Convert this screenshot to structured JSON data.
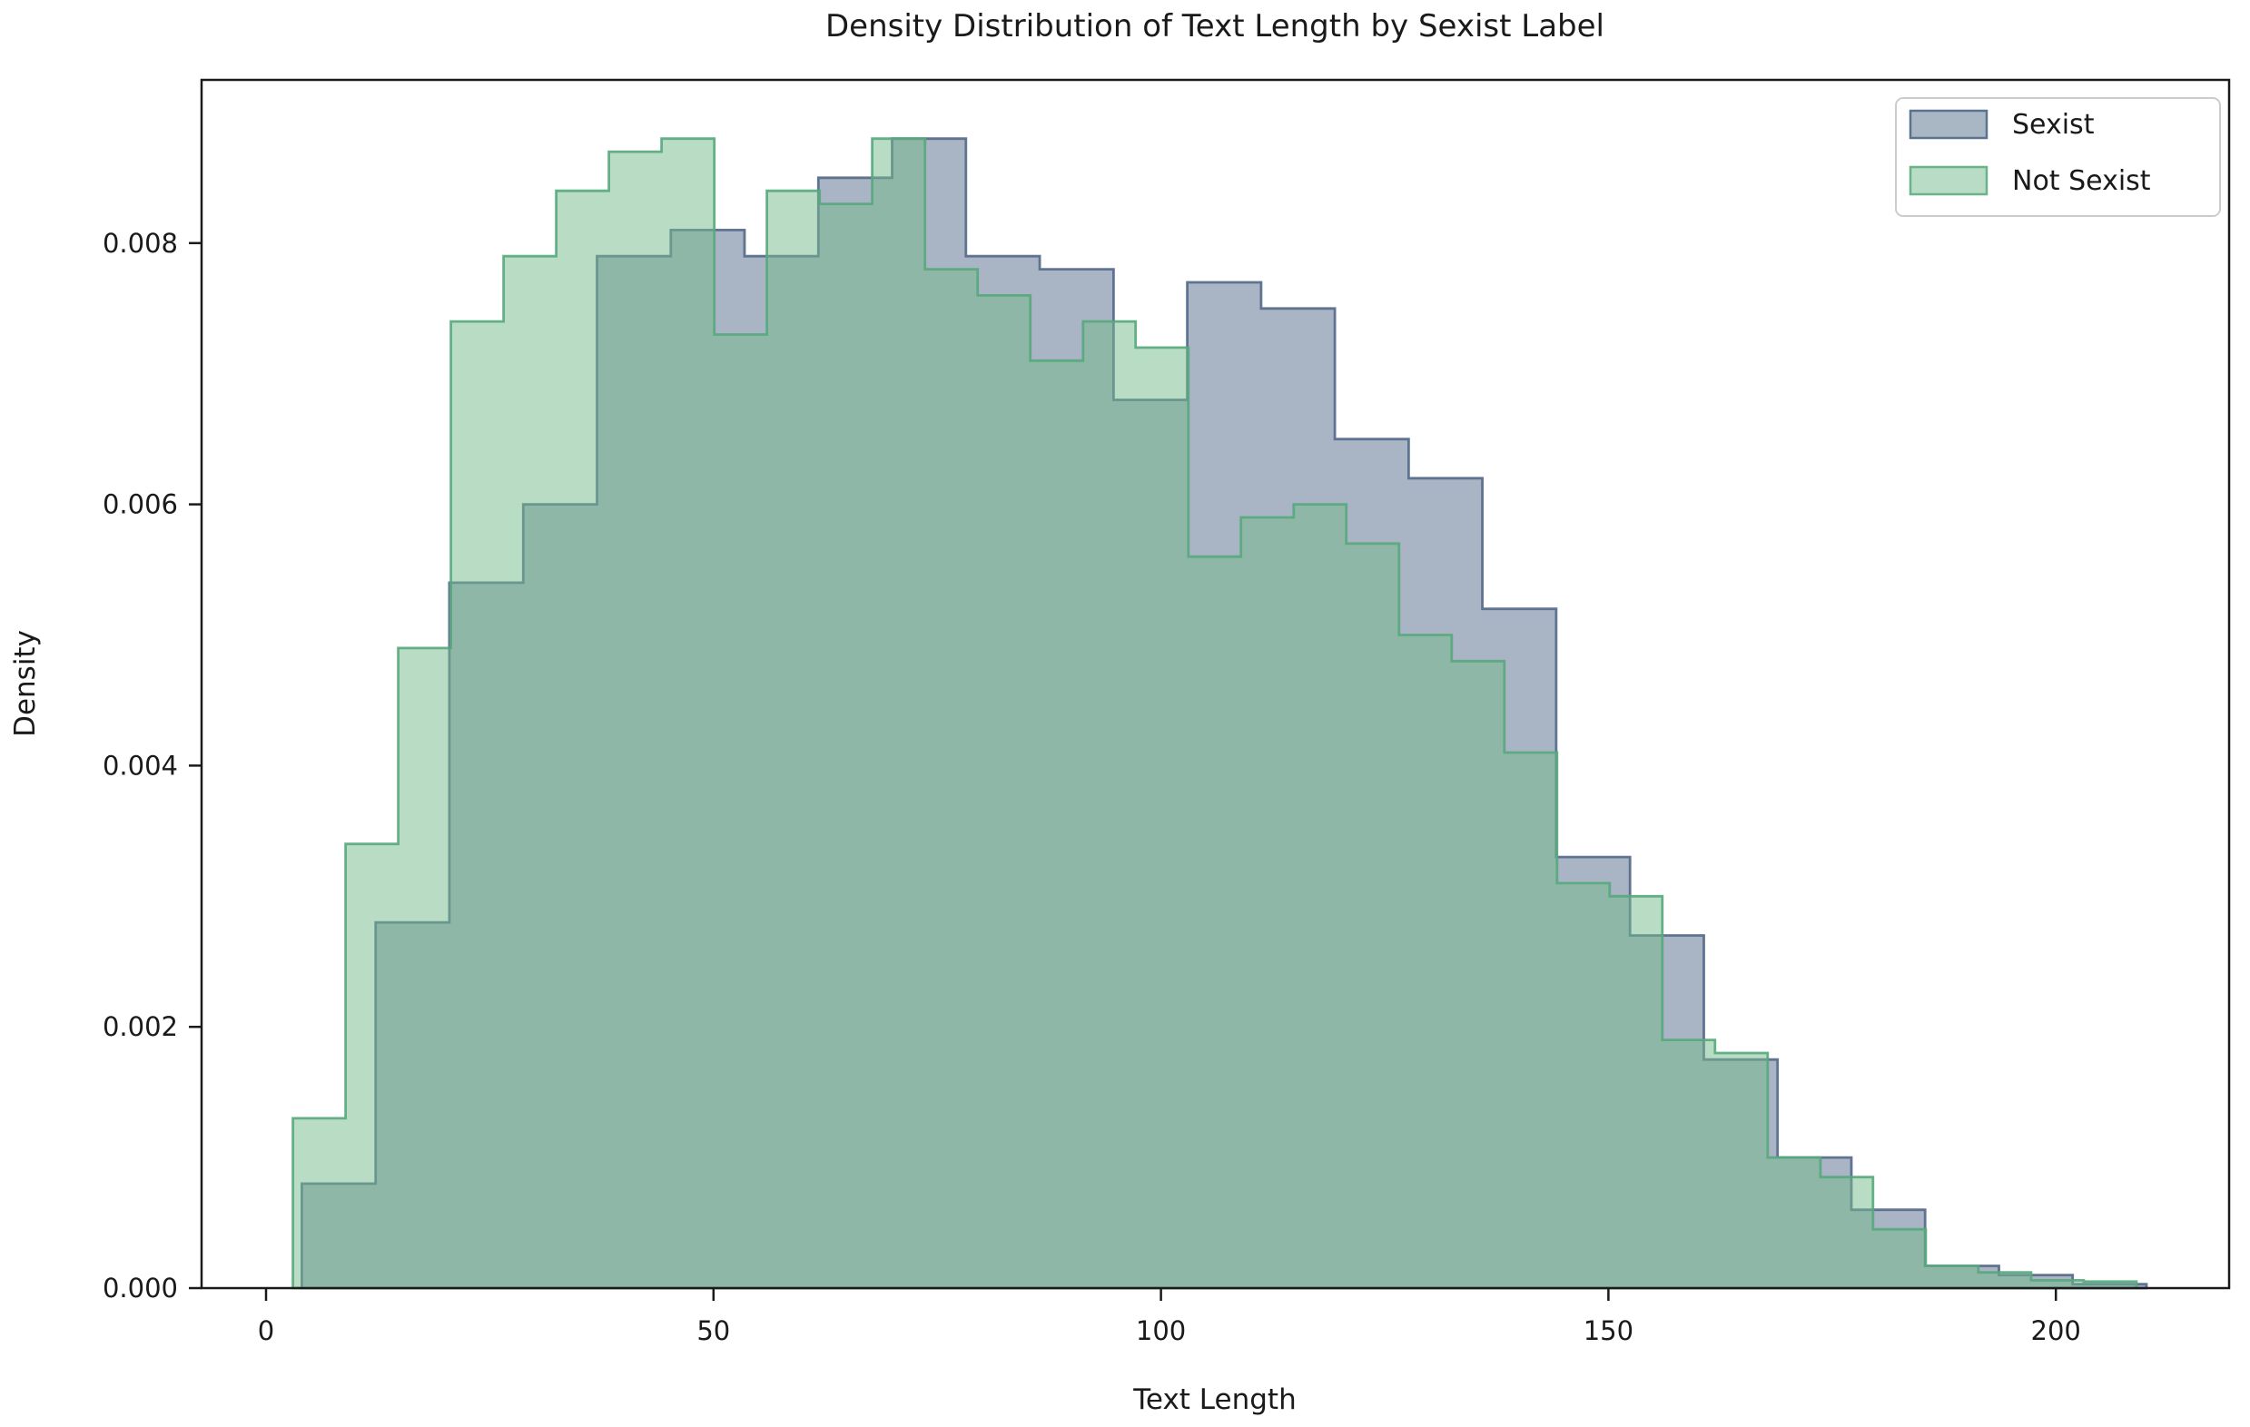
{
  "figure": {
    "title": "Density Distribution of Text Length by Sexist Label",
    "xlabel": "Text Length",
    "ylabel": "Density"
  },
  "legend": {
    "position": "upper right",
    "entries": [
      {
        "label": "Sexist",
        "fill": "#a9b6c4",
        "edge": "#5a7390"
      },
      {
        "label": "Not Sexist",
        "fill": "#b8dcc5",
        "edge": "#6ab389"
      }
    ]
  },
  "axes": {
    "xlim": [
      -7.2,
      219.4
    ],
    "ylim": [
      0,
      0.00925
    ],
    "grid": false,
    "x_ticks": [
      {
        "value": 0,
        "label": "0"
      },
      {
        "value": 50,
        "label": "50"
      },
      {
        "value": 100,
        "label": "100"
      },
      {
        "value": 150,
        "label": "150"
      },
      {
        "value": 200,
        "label": "200"
      }
    ],
    "y_ticks": [
      {
        "value": 0.0,
        "label": "0.000"
      },
      {
        "value": 0.002,
        "label": "0.002"
      },
      {
        "value": 0.004,
        "label": "0.004"
      },
      {
        "value": 0.006,
        "label": "0.006"
      },
      {
        "value": 0.008,
        "label": "0.008"
      }
    ]
  },
  "chart_data": {
    "type": "area",
    "subtype": "step-density-histogram",
    "title": "Density Distribution of Text Length by Sexist Label",
    "xlabel": "Text Length",
    "ylabel": "Density",
    "legend_position": "upper right",
    "series": [
      {
        "name": "Sexist",
        "fill_base": "#536989",
        "edge_color": "#53688a",
        "bin_edges": [
          4.0,
          12.25,
          20.49,
          28.74,
          36.98,
          45.23,
          53.47,
          61.72,
          69.96,
          78.21,
          86.45,
          94.7,
          102.94,
          111.19,
          119.43,
          127.68,
          135.92,
          144.17,
          152.41,
          160.66,
          168.9,
          177.15,
          185.39,
          193.64,
          201.88,
          210.13
        ],
        "densities": [
          0.0008,
          0.0028,
          0.0054,
          0.006,
          0.0079,
          0.0081,
          0.0079,
          0.0085,
          0.0088,
          0.0079,
          0.0078,
          0.0068,
          0.0077,
          0.0075,
          0.0065,
          0.0062,
          0.0052,
          0.0033,
          0.0027,
          0.00175,
          0.001,
          0.0006,
          0.00017,
          0.0001,
          3e-05
        ]
      },
      {
        "name": "Not Sexist",
        "fill_base": "#73b98b",
        "edge_color": "#57a97c",
        "bin_edges": [
          3.0,
          8.89,
          14.77,
          20.66,
          26.54,
          32.43,
          38.31,
          44.2,
          50.09,
          55.97,
          61.86,
          67.74,
          73.63,
          79.51,
          85.4,
          91.29,
          97.17,
          103.06,
          108.94,
          114.83,
          120.71,
          126.6,
          132.49,
          138.37,
          144.26,
          150.14,
          156.03,
          161.91,
          167.8,
          173.69,
          179.57,
          185.46,
          191.34,
          197.23,
          203.11,
          209.0
        ],
        "densities": [
          0.0013,
          0.0034,
          0.0049,
          0.0074,
          0.0079,
          0.0084,
          0.0087,
          0.0088,
          0.0073,
          0.0084,
          0.0083,
          0.0088,
          0.0078,
          0.0076,
          0.0071,
          0.0074,
          0.0072,
          0.0056,
          0.0059,
          0.006,
          0.0057,
          0.005,
          0.0048,
          0.0041,
          0.0031,
          0.003,
          0.0019,
          0.0018,
          0.001,
          0.00085,
          0.00045,
          0.00017,
          0.00012,
          6e-05,
          5e-05
        ]
      }
    ]
  }
}
